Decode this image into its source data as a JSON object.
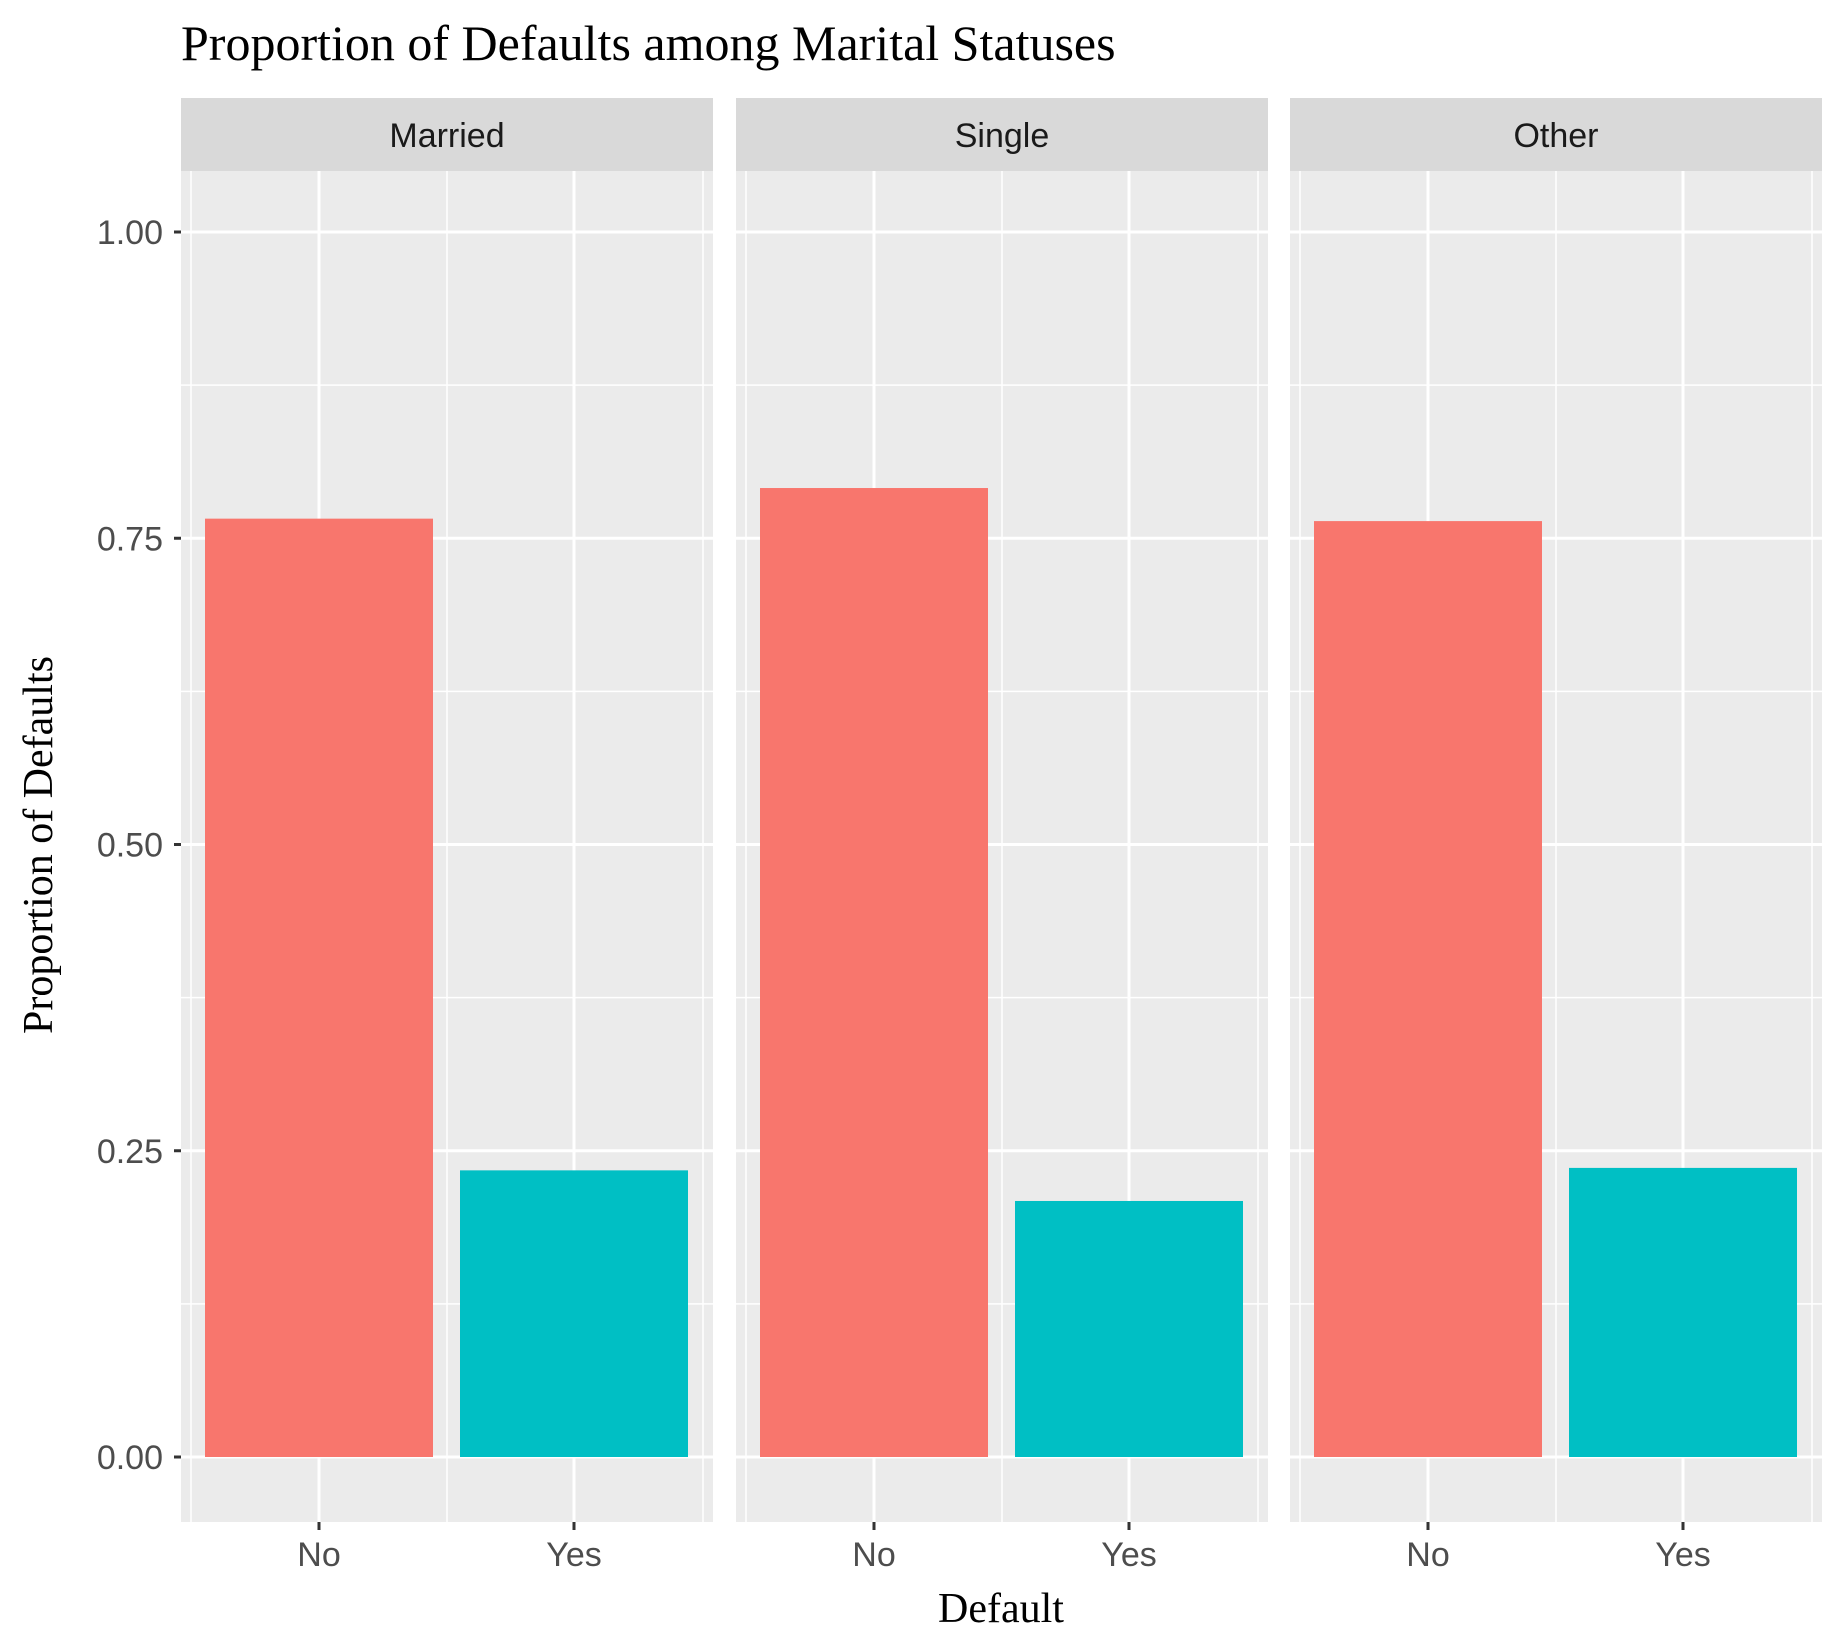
{
  "chart_data": {
    "type": "bar",
    "title": "Proportion of Defaults among Marital Statuses",
    "xlabel": "Default",
    "ylabel": "Proportion of Defaults",
    "categories": [
      "No",
      "Yes"
    ],
    "ylim": [
      0,
      1.05
    ],
    "y_ticks": [
      "0.00",
      "0.25",
      "0.50",
      "0.75",
      "1.00"
    ],
    "y_tick_values": [
      0,
      0.25,
      0.5,
      0.75,
      1.0
    ],
    "grid": true,
    "panel_background": "#ebebeb",
    "strip_background": "#d9d9d9",
    "colors": {
      "No": "#f8766d",
      "Yes": "#00bfc4"
    },
    "facets": [
      {
        "label": "Married",
        "values": [
          0.766,
          0.234
        ]
      },
      {
        "label": "Single",
        "values": [
          0.791,
          0.209
        ]
      },
      {
        "label": "Other",
        "values": [
          0.764,
          0.236
        ]
      }
    ]
  }
}
